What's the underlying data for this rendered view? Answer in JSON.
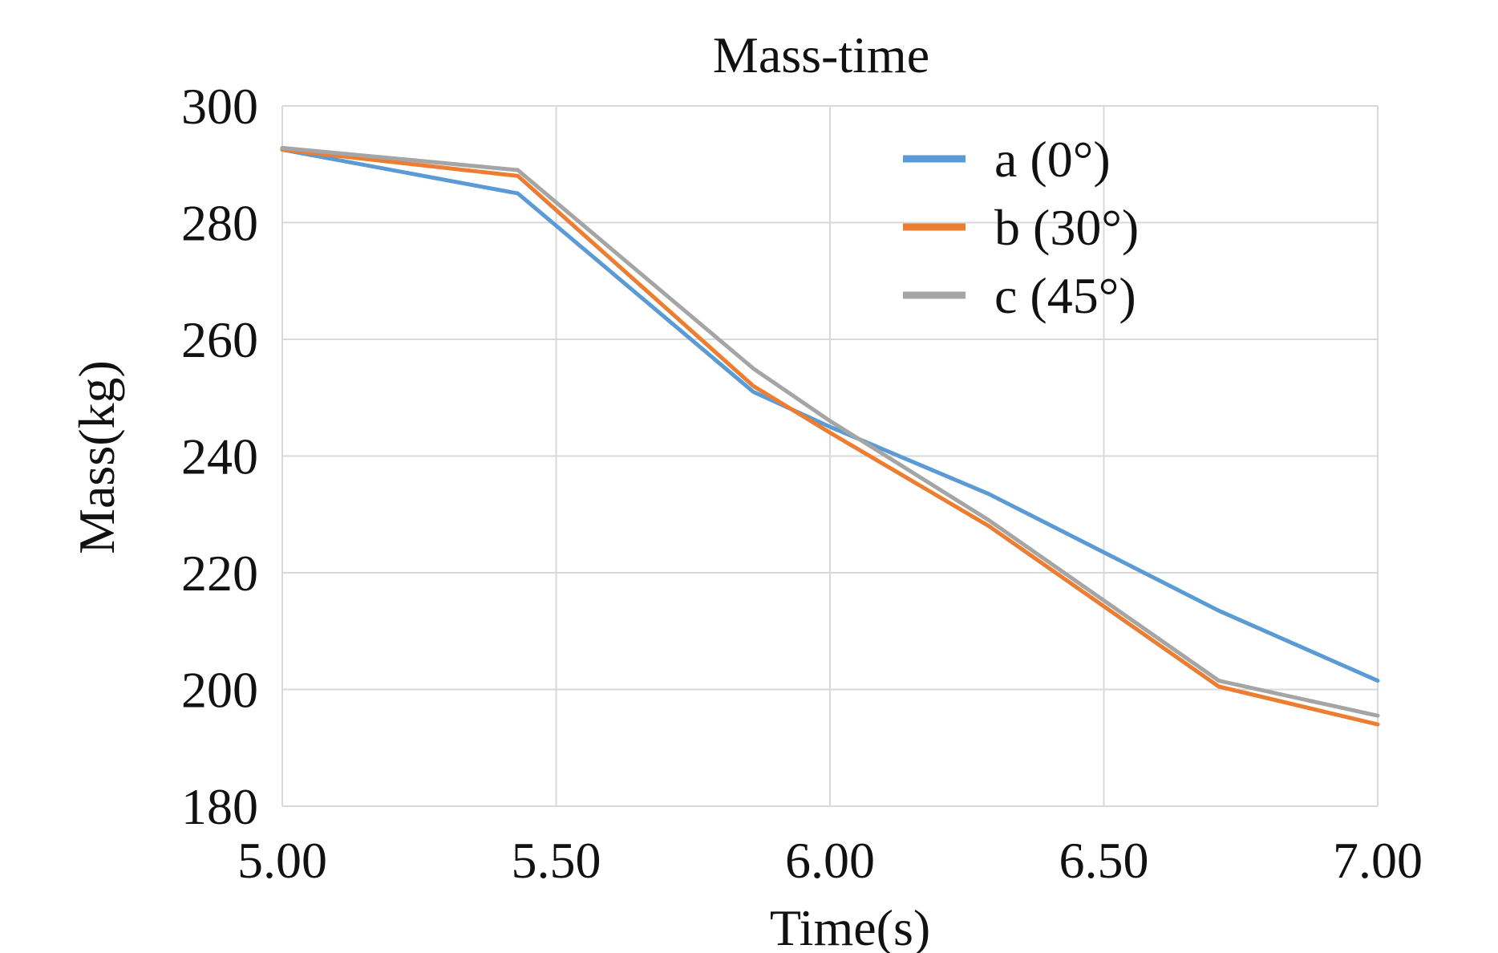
{
  "chart_data": {
    "type": "line",
    "title": "Mass-time",
    "xlabel": "Time(s)",
    "ylabel": "Mass(kg)",
    "xlim": [
      5.0,
      7.0
    ],
    "ylim": [
      180,
      300
    ],
    "x_ticks": [
      "5.00",
      "5.50",
      "6.00",
      "6.50",
      "7.00"
    ],
    "y_ticks": [
      "180",
      "200",
      "220",
      "240",
      "260",
      "280",
      "300"
    ],
    "grid": true,
    "legend_position": "top-right",
    "series": [
      {
        "name": "a (0°)",
        "color": "#5b9bd5",
        "x": [
          5.0,
          5.43,
          5.86,
          6.0,
          6.29,
          6.71,
          7.0
        ],
        "y": [
          292.5,
          285,
          251,
          245,
          233.5,
          213.5,
          201.5
        ]
      },
      {
        "name": "b (30°)",
        "color": "#ed7d31",
        "x": [
          5.0,
          5.43,
          5.86,
          6.0,
          6.29,
          6.71,
          7.0
        ],
        "y": [
          292.5,
          288,
          252,
          244,
          228,
          200.5,
          194
        ]
      },
      {
        "name": "c (45°)",
        "color": "#a5a5a5",
        "x": [
          5.0,
          5.43,
          5.86,
          6.0,
          6.29,
          6.71,
          7.0
        ],
        "y": [
          292.8,
          289,
          255,
          246,
          229,
          201.5,
          195.5
        ]
      }
    ]
  }
}
